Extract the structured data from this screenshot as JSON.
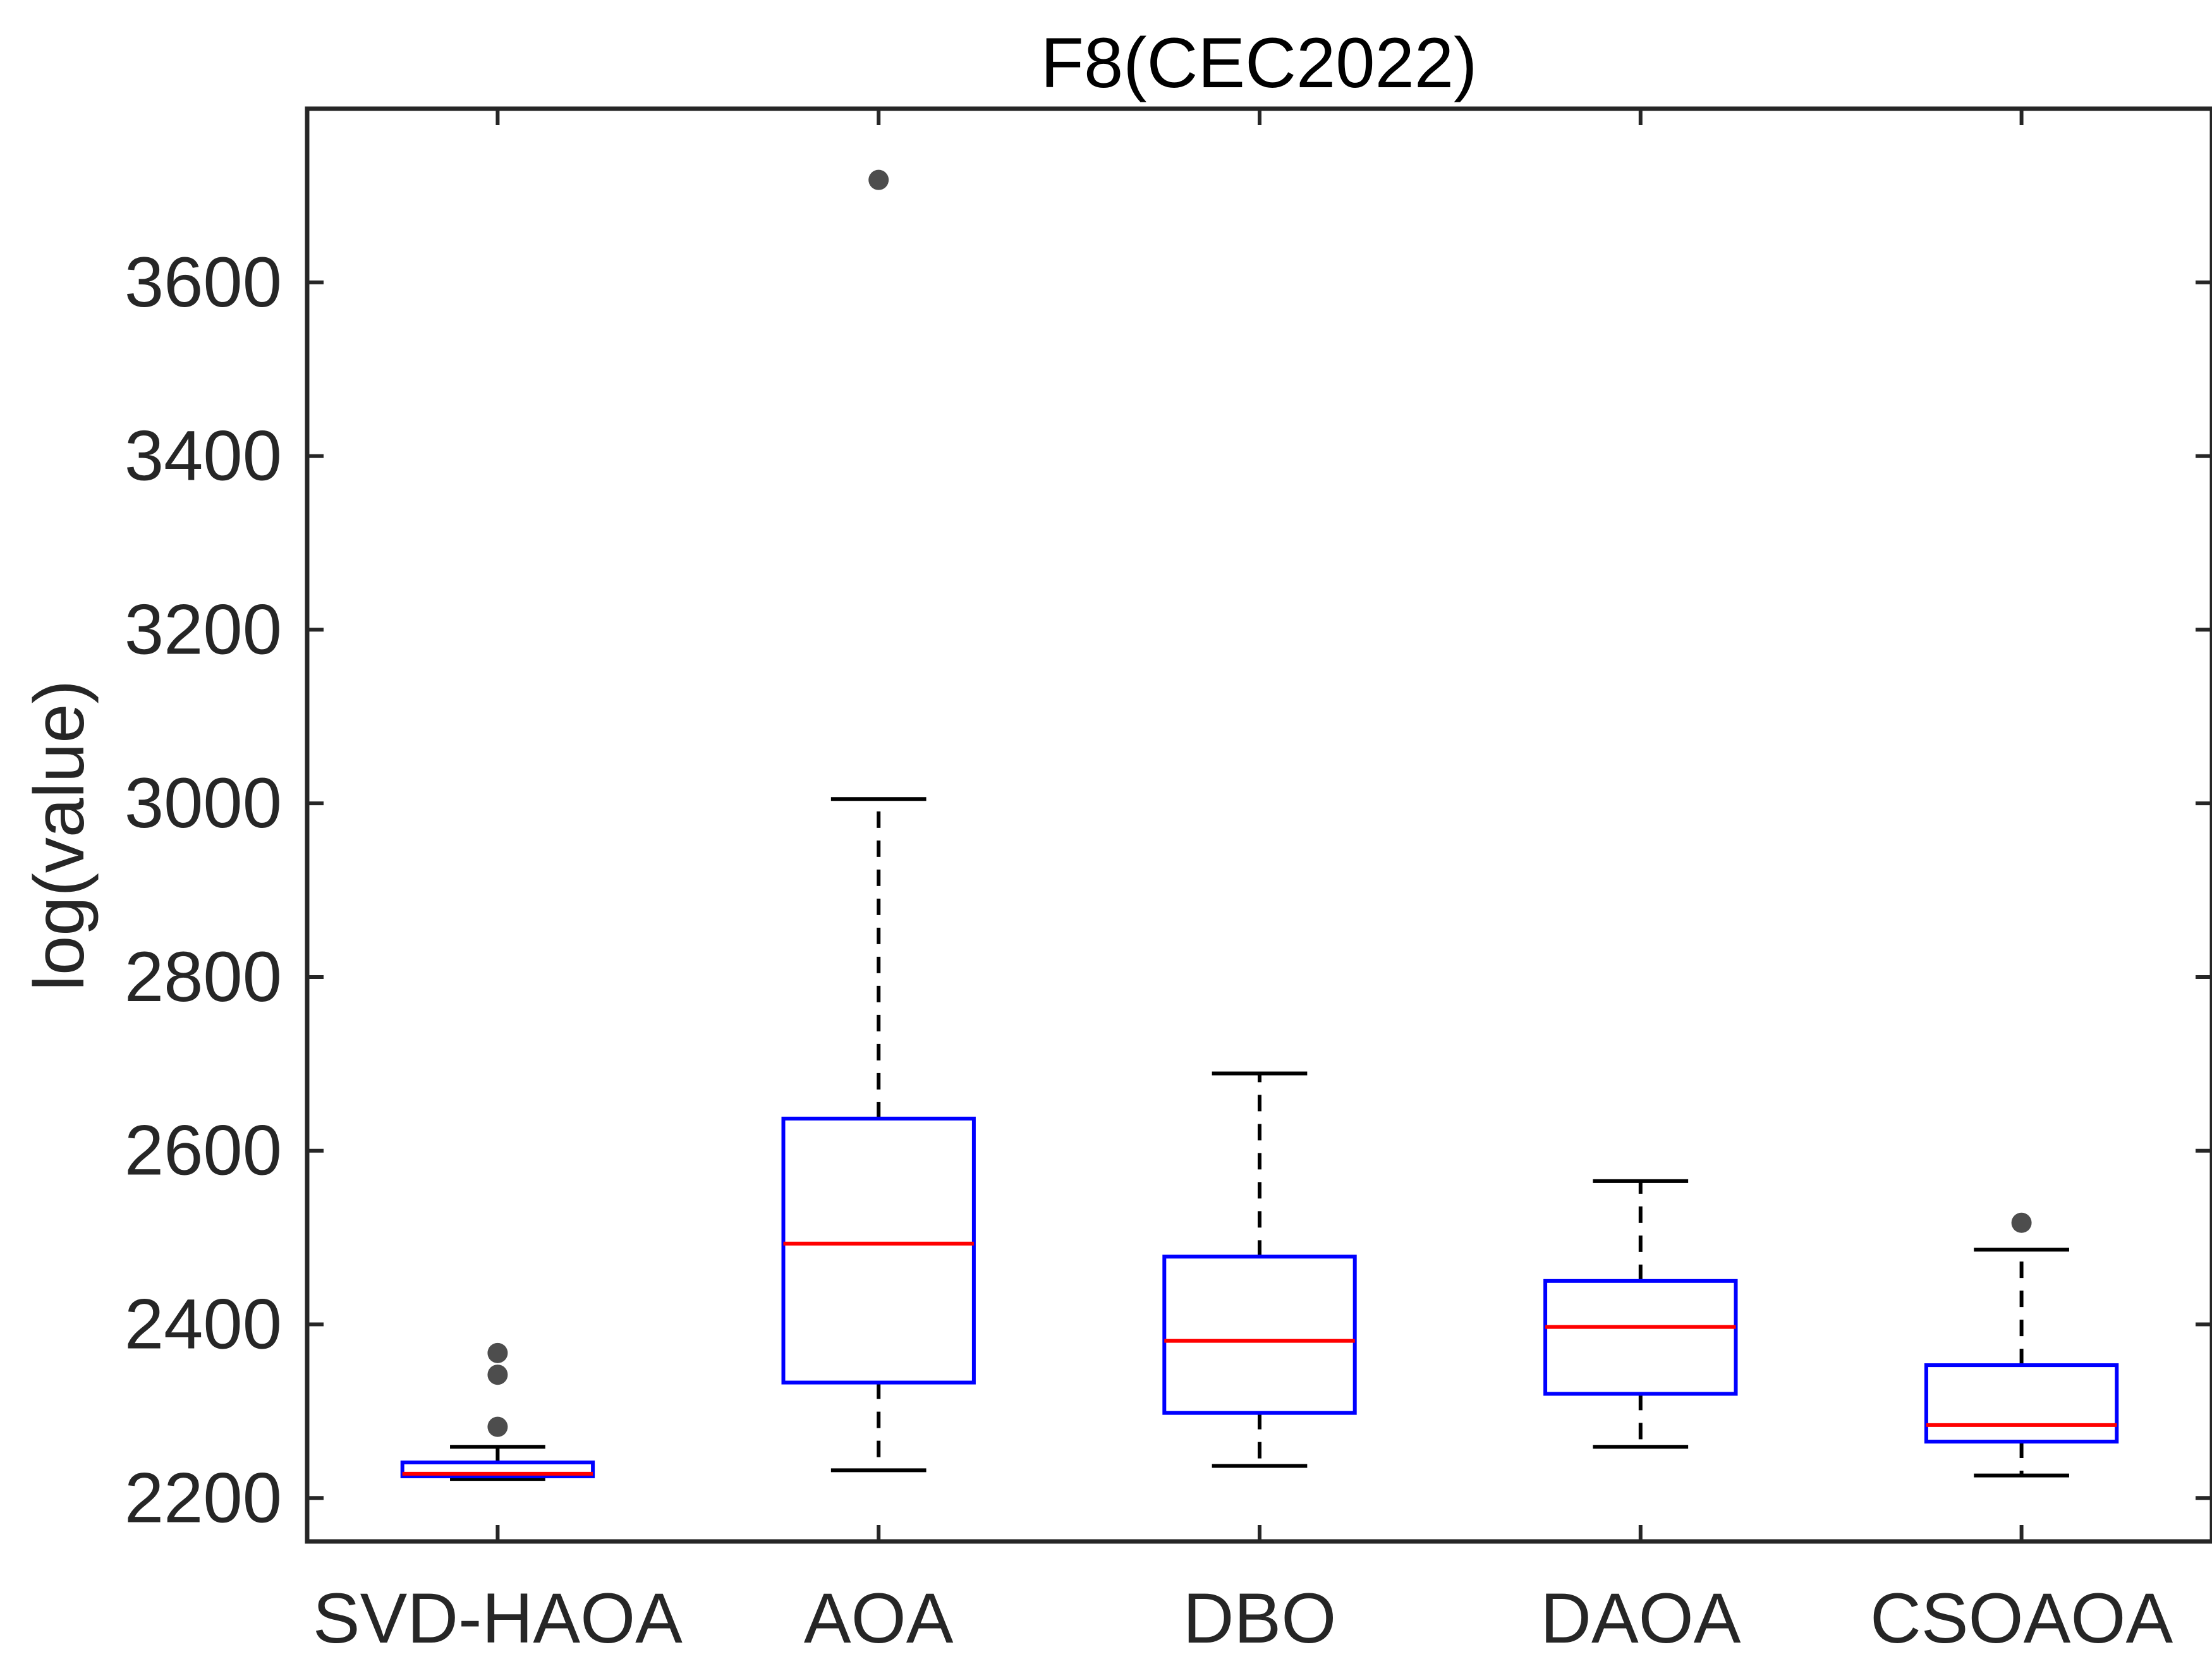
{
  "chart_data": {
    "type": "box",
    "title": "F8(CEC2022)",
    "xlabel": "",
    "ylabel": "log(value)",
    "ylim": [
      2150,
      3800
    ],
    "yticks": [
      2200,
      2400,
      2600,
      2800,
      3000,
      3200,
      3400,
      3600
    ],
    "categories": [
      "SVD-HAOA",
      "AOA",
      "DBO",
      "DAOA",
      "CSOAOA"
    ],
    "boxes": [
      {
        "category": "SVD-HAOA",
        "whisker_low": 2222,
        "q1": 2225,
        "median": 2228,
        "q3": 2241,
        "whisker_high": 2259,
        "outliers": [
          2282,
          2342,
          2367
        ]
      },
      {
        "category": "AOA",
        "whisker_low": 2232,
        "q1": 2333,
        "median": 2493,
        "q3": 2637,
        "whisker_high": 3005,
        "outliers": [
          3718
        ]
      },
      {
        "category": "DBO",
        "whisker_low": 2237,
        "q1": 2298,
        "median": 2381,
        "q3": 2478,
        "whisker_high": 2689,
        "outliers": []
      },
      {
        "category": "DAOA",
        "whisker_low": 2259,
        "q1": 2320,
        "median": 2397,
        "q3": 2450,
        "whisker_high": 2565,
        "outliers": []
      },
      {
        "category": "CSOAOA",
        "whisker_low": 2226,
        "q1": 2265,
        "median": 2284,
        "q3": 2353,
        "whisker_high": 2486,
        "outliers": [
          2517
        ]
      }
    ],
    "grid": false,
    "legend": "none",
    "colors": {
      "box": "#0000ff",
      "median": "#ff0000",
      "whisker": "#000000",
      "outlier": "#4d4d4d",
      "axis": "#262626"
    }
  }
}
